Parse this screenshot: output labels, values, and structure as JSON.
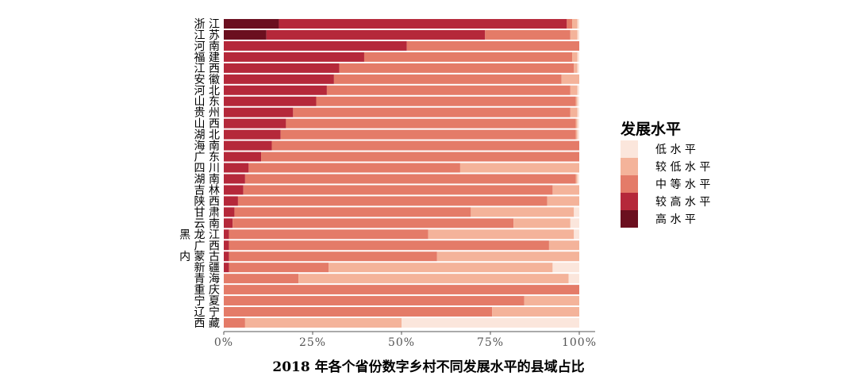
{
  "caption": "2018 年各个省份数字乡村不同发展水平的县域占比",
  "chart_data": {
    "type": "bar",
    "orientation": "horizontal",
    "stacked": "percent",
    "caption": "2018 年各个省份数字乡村不同发展水平的县域占比",
    "categories": [
      "浙江",
      "江苏",
      "河南",
      "福建",
      "江西",
      "安徽",
      "河北",
      "山东",
      "贵州",
      "山西",
      "湖北",
      "海南",
      "广东",
      "四川",
      "湖南",
      "吉林",
      "陕西",
      "甘肃",
      "云南",
      "黑龙江",
      "广西",
      "内蒙古",
      "新疆",
      "青海",
      "重庆",
      "宁夏",
      "辽宁",
      "西藏"
    ],
    "category_labels": [
      "浙 江",
      "江 苏",
      "河 南",
      "福 建",
      "江 西",
      "安 徽",
      "河 北",
      "山 东",
      "贵 州",
      "山 西",
      "湖 北",
      "海 南",
      "广 东",
      "四 川",
      "湖 南",
      "吉 林",
      "陕 西",
      "甘 肃",
      "云 南",
      "黑 龙 江",
      "广 西",
      "内 蒙 古",
      "新 疆",
      "青 海",
      "重 庆",
      "宁 夏",
      "辽 宁",
      "西 藏"
    ],
    "series": [
      {
        "name": "高水平",
        "color": "#6b0f1f",
        "values": [
          15.5,
          12.0,
          0,
          0,
          0,
          0,
          0,
          0,
          0,
          0,
          0,
          0,
          0,
          0,
          0,
          0,
          0,
          0,
          0,
          0,
          0,
          0,
          0,
          0,
          0,
          0,
          0,
          0
        ]
      },
      {
        "name": "较高水平",
        "color": "#b5283a",
        "values": [
          81.0,
          61.5,
          51.5,
          39.5,
          32.5,
          31.0,
          29.0,
          26.0,
          19.5,
          17.5,
          16.0,
          13.5,
          10.5,
          7.0,
          6.0,
          5.5,
          4.0,
          3.0,
          2.5,
          1.5,
          1.5,
          1.5,
          1.5,
          0,
          0,
          0,
          0,
          0
        ]
      },
      {
        "name": "中等水平",
        "color": "#e47b68",
        "values": [
          1.5,
          24.0,
          48.5,
          58.5,
          66.0,
          64.0,
          68.5,
          73.0,
          78.0,
          81.5,
          83.0,
          86.5,
          89.5,
          59.5,
          93.0,
          87.0,
          87.0,
          66.5,
          79.0,
          56.0,
          90.0,
          58.5,
          28.0,
          21.0,
          100,
          84.5,
          75.5,
          6.0
        ]
      },
      {
        "name": "较低水平",
        "color": "#f4b39a",
        "values": [
          1.5,
          2.0,
          0,
          1.5,
          1.0,
          5.0,
          2.0,
          0.5,
          2.0,
          0.5,
          0.5,
          0,
          0,
          33.5,
          0.5,
          7.5,
          9.0,
          29.0,
          16.0,
          41.0,
          8.5,
          40.0,
          63.0,
          76.0,
          0,
          15.5,
          24.5,
          44.0
        ]
      },
      {
        "name": "低水平",
        "color": "#fbe6dc",
        "values": [
          0.5,
          0.5,
          0,
          0.5,
          0.5,
          0,
          0.5,
          0.5,
          0.5,
          0.5,
          0.5,
          0,
          0,
          0,
          0.5,
          0,
          0,
          1.5,
          2.5,
          1.5,
          0,
          0,
          7.5,
          3.0,
          0,
          0,
          0,
          50.0
        ]
      }
    ],
    "xlim": [
      0,
      100
    ],
    "xticks": [
      "0%",
      "25%",
      "50%",
      "75%",
      "100%"
    ],
    "legend": {
      "title": "发展水平",
      "position": "right",
      "entries": [
        "低水平",
        "较低水平",
        "中等水平",
        "较高水平",
        "高水平"
      ],
      "entry_labels": [
        "低 水 平",
        "较 低 水 平",
        "中 等 水 平",
        "较 高 水 平",
        "高 水 平"
      ]
    }
  }
}
